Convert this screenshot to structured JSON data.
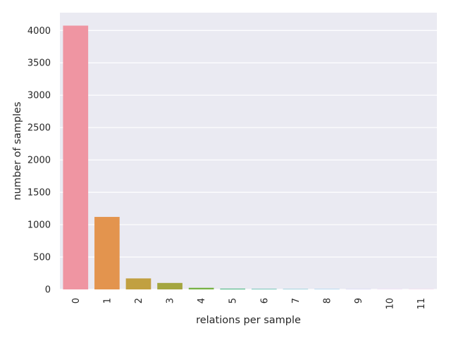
{
  "chart_data": {
    "type": "bar",
    "title": "",
    "xlabel": "relations per sample",
    "ylabel": "number of samples",
    "categories": [
      "0",
      "1",
      "2",
      "3",
      "4",
      "5",
      "6",
      "7",
      "8",
      "9",
      "10",
      "11"
    ],
    "values": [
      4075,
      1120,
      170,
      100,
      25,
      12,
      8,
      5,
      4,
      3,
      2,
      2
    ],
    "colors": [
      "#ef95a2",
      "#e3944e",
      "#c1a041",
      "#a4a640",
      "#77b244",
      "#4cb784",
      "#4bb6a5",
      "#4fb4c3",
      "#5cb0e3",
      "#a5a1ec",
      "#d88eec",
      "#ef8fc9"
    ],
    "ylim": [
      0,
      4275
    ],
    "yticks": [
      0,
      500,
      1000,
      1500,
      2000,
      2500,
      3000,
      3500,
      4000
    ],
    "grid": true,
    "background": "#eaeaf2",
    "legend": "none"
  }
}
